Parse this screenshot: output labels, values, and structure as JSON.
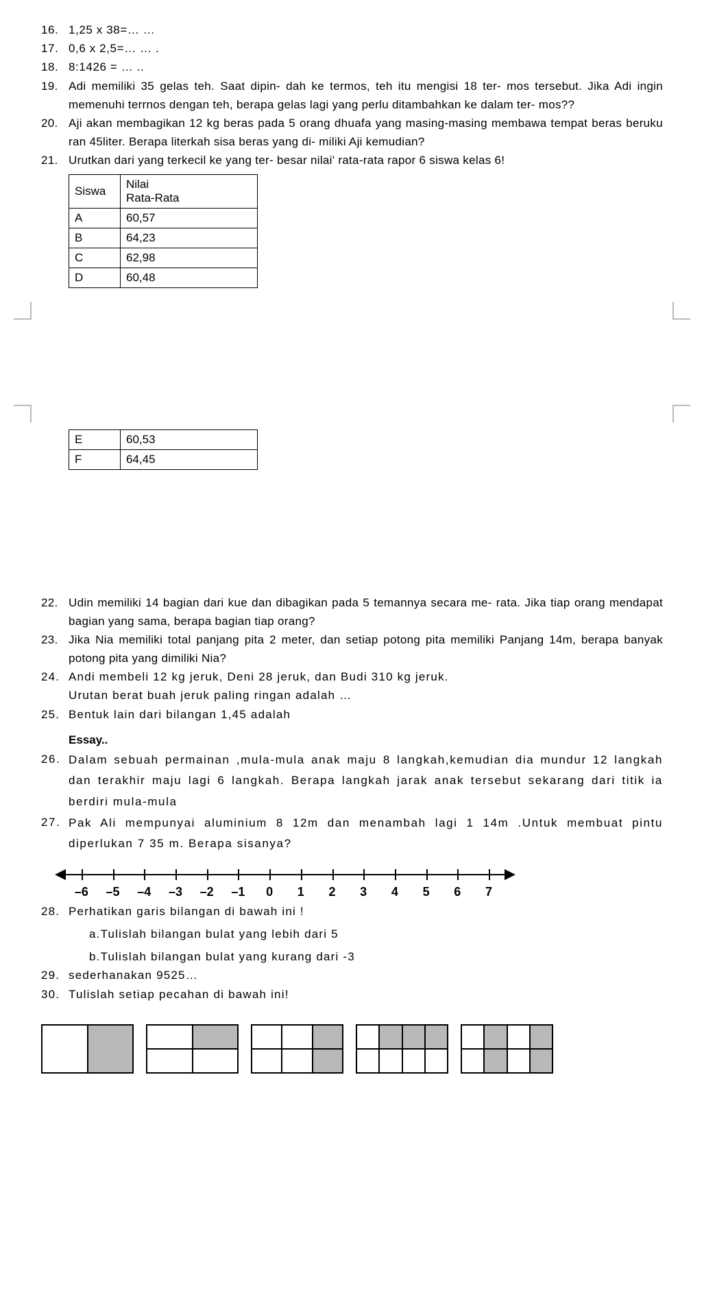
{
  "q16": {
    "num": "16.",
    "text": "1,25 x 38=… …"
  },
  "q17": {
    "num": "17.",
    "text": "0,6 x 2,5=… … ."
  },
  "q18": {
    "num": "18.",
    "text": "8:1426 = … .."
  },
  "q19": {
    "num": "19.",
    "text": "Adi memiliki 35 gelas teh. Saat dipin-   dah ke termos, teh itu mengisi 18 ter-  mos tersebut. Jika Adi ingin memenuhi terrnos dengan teh, berapa gelas lagi yang perlu ditambahkan ke dalam ter-   mos??"
  },
  "q20": {
    "num": "20.",
    "text": "Aji akan membagikan 12 kg beras pada 5 orang dhuafa yang masing-masing membawa tempat beras beruku ran 45liter. Berapa literkah sisa beras yang di-  miliki Aji kemudian?"
  },
  "q21": {
    "num": "21.",
    "text": "Urutkan dari yang terkecil ke yang ter-   besar nilai' rata-rata rapor 6 siswa kelas 6!"
  },
  "table1": {
    "headers": [
      "Siswa",
      "Nilai Rata-Rata"
    ],
    "rows": [
      [
        "A",
        "60,57"
      ],
      [
        "B",
        "64,23"
      ],
      [
        "C",
        "62,98"
      ],
      [
        "D",
        "60,48"
      ]
    ]
  },
  "table2": {
    "rows": [
      [
        "E",
        "60,53"
      ],
      [
        "F",
        "64,45"
      ]
    ]
  },
  "q22": {
    "num": "22.",
    "text": "Udin memiliki 14 bagian dari kue dan dibagikan pada 5 temannya secara me-   rata. Jika tiap orang mendapat bagian yang sama, berapa bagian tiap orang?"
  },
  "q23": {
    "num": "23.",
    "text": "Jika Nia memiliki total panjang pita 2 meter, dan setiap potong pita memiliki Panjang 14m, berapa banyak potong pita yang dimiliki Nia?"
  },
  "q24": {
    "num": "24.",
    "text1": "Andi membeli 12 kg jeruk, Deni 28 jeruk, dan Budi 310 kg jeruk.",
    "text2": "Urutan berat buah jeruk paling ringan adalah …"
  },
  "q25": {
    "num": "25.",
    "text": "Bentuk lain dari bilangan 1,45 adalah"
  },
  "essay_h": "Essay..",
  "q26": {
    "num": "26.",
    "text": "Dalam sebuah permainan ,mula-mula anak maju 8 langkah,kemudian dia mundur 12 langkah dan terakhir maju lagi 6 langkah. Berapa langkah jarak anak tersebut sekarang dari titik ia berdiri mula-mula"
  },
  "q27": {
    "num": "27.",
    "text": "Pak Ali mempunyai aluminium 8 12m dan menambah lagi 1 14m .Untuk membuat pintu diperlukan 7 35 m. Berapa sisanya?"
  },
  "numline": {
    "labels": [
      "–6",
      "–5",
      "–4",
      "–3",
      "–2",
      "–1",
      "0",
      "1",
      "2",
      "3",
      "4",
      "5",
      "6",
      "7"
    ]
  },
  "q28": {
    "num": "28.",
    "text": "Perhatikan garis bilangan di bawah ini !",
    "a": "a.Tulislah bilangan bulat yang lebih dari 5",
    "b": "b.Tulislah bilangan bulat yang kurang dari -3"
  },
  "q29": {
    "num": "29.",
    "text": "sederhanakan 9525…"
  },
  "q30": {
    "num": "30.",
    "text": "Tulislah setiap pecahan di bawah ini!"
  },
  "fractions": [
    {
      "cols": 2,
      "rows": 1,
      "shaded": [
        1
      ]
    },
    {
      "cols": 2,
      "rows": 2,
      "shaded": [
        1
      ]
    },
    {
      "cols": 3,
      "rows": 2,
      "shaded": [
        2,
        5
      ]
    },
    {
      "cols": 4,
      "rows": 2,
      "shaded": [
        1,
        2,
        3
      ]
    },
    {
      "cols": 4,
      "rows": 2,
      "shaded": [
        1,
        3,
        5,
        7
      ]
    }
  ]
}
